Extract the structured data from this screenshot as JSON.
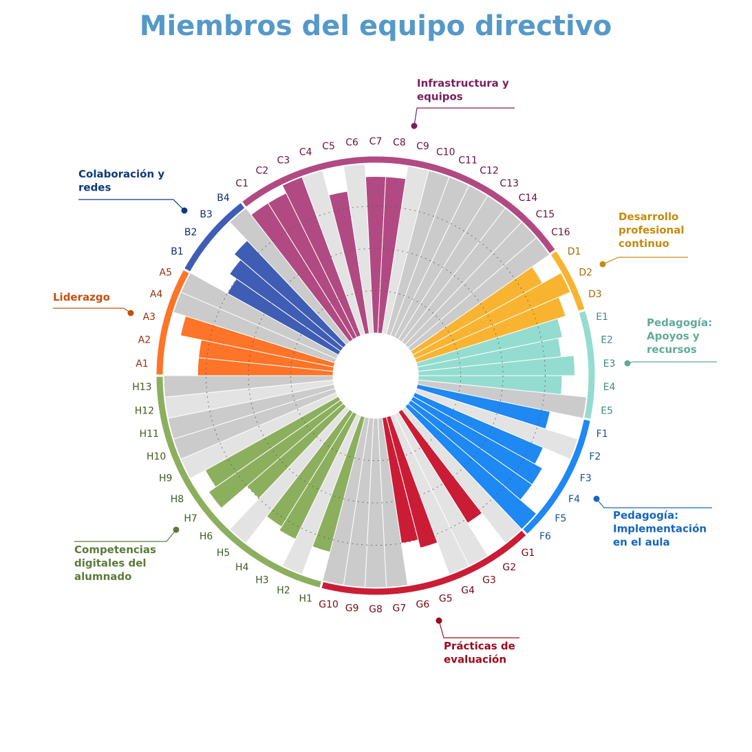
{
  "chart_data": {
    "type": "radial_bar",
    "title": "Miembros del equipo directivo",
    "ylim": [
      0,
      4
    ],
    "yticks": [
      1,
      2,
      3
    ],
    "grid": true,
    "series": [
      {
        "name": "Liderazgo",
        "color": "#fe7428",
        "label_color": "#c4500f",
        "tick_color": "#9a2e0c",
        "categories": [
          "A1",
          "A2",
          "A3",
          "A4",
          "A5"
        ],
        "values": [
          3.2,
          3.2,
          3.7,
          4,
          4
        ],
        "bar_colors": [
          "#fe7428",
          "#fe7428",
          "#fe7428",
          "#cbcbcb",
          "#cbcbcb"
        ]
      },
      {
        "name": "Colaboración y redes",
        "color": "#3f5db5",
        "label_color": "#0d3b7a",
        "tick_color": "#0d2d6e",
        "categories": [
          "B1",
          "B2",
          "B3",
          "B4"
        ],
        "values": [
          3.0,
          3.2,
          3.4,
          4
        ],
        "bar_colors": [
          "#3f5db5",
          "#3f5db5",
          "#3f5db5",
          "#cbcbcb"
        ]
      },
      {
        "name": "Infrastructura y equipos",
        "color": "#b14a82",
        "label_color": "#7a1f5c",
        "tick_color": "#6b0f3e",
        "categories": [
          "C1",
          "C2",
          "C3",
          "C4",
          "C5",
          "C6",
          "C7",
          "C8",
          "C9",
          "C10",
          "C11",
          "C12",
          "C13",
          "C14",
          "C15",
          "C16"
        ],
        "values": [
          3.8,
          3.8,
          4.0,
          4,
          3.4,
          4,
          3.7,
          3.7,
          4,
          4,
          4,
          4,
          4,
          4,
          4,
          4
        ],
        "bar_colors": [
          "#b14a82",
          "#b14a82",
          "#b14a82",
          "#e3e3e3",
          "#b14a82",
          "#e3e3e3",
          "#b14a82",
          "#b14a82",
          "#e3e3e3",
          "#cbcbcb",
          "#cbcbcb",
          "#cbcbcb",
          "#cbcbcb",
          "#cbcbcb",
          "#cbcbcb",
          "#cbcbcb"
        ]
      },
      {
        "name": "Desarrollo profesional continuo",
        "color": "#f8b431",
        "label_color": "#c68a0c",
        "tick_color": "#a56b00",
        "categories": [
          "D1",
          "D2",
          "D3"
        ],
        "values": [
          3.5,
          4.0,
          3.7
        ],
        "bar_colors": [
          "#f8b431",
          "#f8b431",
          "#f8b431"
        ]
      },
      {
        "name": "Pedagogía: Apoyos y recursos",
        "color": "#94dcd0",
        "label_color": "#5faa98",
        "tick_color": "#3d8a7c",
        "categories": [
          "E1",
          "E2",
          "E3",
          "E4",
          "E5"
        ],
        "values": [
          3.5,
          3.4,
          3.7,
          3.4,
          4
        ],
        "bar_colors": [
          "#94dcd0",
          "#94dcd0",
          "#94dcd0",
          "#94dcd0",
          "#cbcbcb"
        ]
      },
      {
        "name": "Pedagogía: Implementación en el aula",
        "color": "#1e88f3",
        "label_color": "#1466c0",
        "tick_color": "#124f9a",
        "categories": [
          "F1",
          "F2",
          "F3",
          "F4",
          "F5",
          "F6"
        ],
        "values": [
          3.2,
          4,
          3.3,
          3.5,
          3.5,
          4.0
        ],
        "bar_colors": [
          "#1e88f3",
          "#e3e3e3",
          "#1e88f3",
          "#1e88f3",
          "#1e88f3",
          "#1e88f3"
        ]
      },
      {
        "name": "Prácticas de evaluación",
        "color": "#cb1c36",
        "label_color": "#9c0a1a",
        "tick_color": "#7a0614",
        "categories": [
          "G1",
          "G2",
          "G3",
          "G4",
          "G5",
          "G6",
          "G7",
          "G8",
          "G9",
          "G10"
        ],
        "values": [
          4,
          3.1,
          4,
          4,
          3.2,
          3.0,
          4,
          4,
          4,
          4
        ],
        "bar_colors": [
          "#e3e3e3",
          "#cb1c36",
          "#e3e3e3",
          "#e3e3e3",
          "#cb1c36",
          "#cb1c36",
          "#cbcbcb",
          "#cbcbcb",
          "#cbcbcb",
          "#cbcbcb"
        ]
      },
      {
        "name": "Competencias digitales del alumnado",
        "color": "#8caf5e",
        "label_color": "#5c7a3a",
        "tick_color": "#3d5a1e",
        "categories": [
          "H1",
          "H2",
          "H3",
          "H4",
          "H5",
          "H6",
          "H7",
          "H8",
          "H9",
          "H10",
          "H11",
          "H12",
          "H13"
        ],
        "values": [
          3.3,
          4,
          3.3,
          3.2,
          4,
          3.0,
          3.8,
          3.6,
          4,
          4,
          4,
          4,
          4
        ],
        "bar_colors": [
          "#8caf5e",
          "#e3e3e3",
          "#8caf5e",
          "#8caf5e",
          "#e3e3e3",
          "#8caf5e",
          "#8caf5e",
          "#8caf5e",
          "#e3e3e3",
          "#cbcbcb",
          "#cbcbcb",
          "#e3e3e3",
          "#cbcbcb"
        ]
      }
    ]
  }
}
